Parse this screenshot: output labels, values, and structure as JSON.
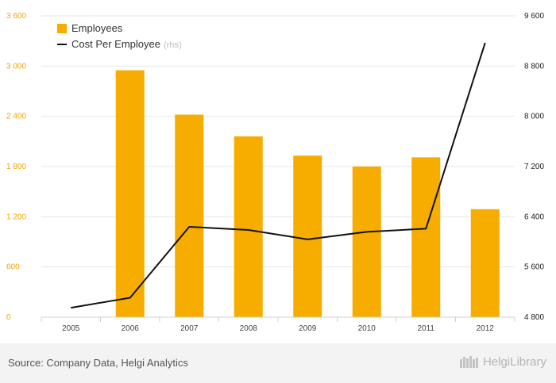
{
  "chart_data": {
    "type": "bar+line",
    "categories": [
      "2005",
      "2006",
      "2007",
      "2008",
      "2009",
      "2010",
      "2011",
      "2012"
    ],
    "series": [
      {
        "name": "Employees",
        "type": "bar",
        "axis": "left",
        "values": [
          null,
          2950,
          2420,
          2160,
          1930,
          1800,
          1910,
          1290
        ]
      },
      {
        "name": "Cost Per Employee",
        "suffix": "(rhs)",
        "type": "line",
        "axis": "right",
        "values": [
          4950,
          5110,
          6240,
          6190,
          6040,
          6160,
          6210,
          9170
        ]
      }
    ],
    "left_axis": {
      "min": 0,
      "max": 3600,
      "ticks": [
        0,
        600,
        1200,
        1800,
        2400,
        3000,
        3600
      ],
      "tick_labels": [
        "0",
        "600",
        "1 200",
        "1 800",
        "2 400",
        "3 000",
        "3 600"
      ]
    },
    "right_axis": {
      "min": 4800,
      "max": 9600,
      "ticks": [
        4800,
        5600,
        6400,
        7200,
        8000,
        8800,
        9600
      ],
      "tick_labels": [
        "4 800",
        "5 600",
        "6 400",
        "7 200",
        "8 000",
        "8 800",
        "9 600"
      ]
    },
    "legend": {
      "position": "top-left"
    },
    "colors": {
      "bar": "#f7ad00",
      "line": "#111111",
      "left_tick": "#f0a500",
      "right_tick": "#222222",
      "grid": "#e6e6e6",
      "rhs_note": "#bbbbbb"
    },
    "grid": true
  },
  "footer": {
    "source": "Source: Company Data, Helgi Analytics",
    "brand": "HelgiLibrary",
    "brand_icon": "library-books-icon"
  }
}
